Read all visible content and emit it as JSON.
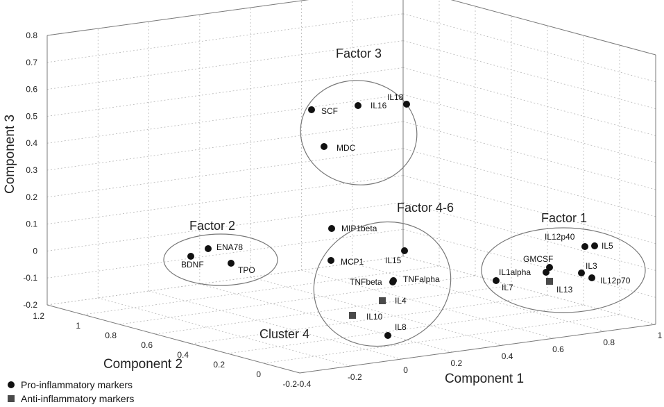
{
  "chart_data": {
    "type": "scatter",
    "projection": "3d",
    "xlabel": "Component 1",
    "ylabel": "Component 2",
    "zlabel": "Component 3",
    "xlim": [
      -0.4,
      1
    ],
    "ylim": [
      -0.2,
      1.2
    ],
    "zlim": [
      -0.2,
      0.8
    ],
    "x_ticks": [
      "-0.4",
      "-0.2",
      "0",
      "0.2",
      "0.4",
      "0.6",
      "0.8",
      "1"
    ],
    "y_ticks": [
      "-0.2",
      "0",
      "0.2",
      "0.4",
      "0.6",
      "0.8",
      "1",
      "1.2"
    ],
    "z_ticks": [
      "-0.2",
      "-0.1",
      "0",
      "0.1",
      "0.2",
      "0.3",
      "0.4",
      "0.5",
      "0.6",
      "0.7",
      "0.8"
    ],
    "grid": true,
    "legend_position": "bottom-left",
    "series": [
      {
        "name": "Pro-inflammatory markers",
        "marker": "circle",
        "color": "#111111",
        "points": [
          {
            "label": "SCF",
            "x": 0.0,
            "y": 0.9,
            "z": 0.53
          },
          {
            "label": "IL16",
            "x": 0.25,
            "y": 1.0,
            "z": 0.54
          },
          {
            "label": "IL18",
            "x": 0.4,
            "y": 1.05,
            "z": 0.55
          },
          {
            "label": "MDC",
            "x": 0.0,
            "y": 0.85,
            "z": 0.39
          },
          {
            "label": "ENA78",
            "x": -0.3,
            "y": 1.0,
            "z": 0.01
          },
          {
            "label": "BDNF",
            "x": -0.35,
            "y": 0.9,
            "z": -0.02
          },
          {
            "label": "TPO",
            "x": -0.22,
            "y": 0.85,
            "z": -0.04
          },
          {
            "label": "MIP1beta",
            "x": 0.08,
            "y": 0.4,
            "z": 0.08
          },
          {
            "label": "MCP1",
            "x": 0.04,
            "y": 0.35,
            "z": -0.02
          },
          {
            "label": "IL15",
            "x": 0.35,
            "y": 0.45,
            "z": 0.0
          },
          {
            "label": "TNFbeta",
            "x": 0.25,
            "y": 0.35,
            "z": -0.1
          },
          {
            "label": "TNFalpha",
            "x": 0.26,
            "y": 0.35,
            "z": -0.11
          },
          {
            "label": "IL8",
            "x": 0.2,
            "y": 0.2,
            "z": -0.3
          },
          {
            "label": "IL12p40",
            "x": 0.85,
            "y": 0.6,
            "z": 0.01
          },
          {
            "label": "IL5",
            "x": 0.9,
            "y": 0.55,
            "z": 0.02
          },
          {
            "label": "GMCSF",
            "x": 0.7,
            "y": 0.5,
            "z": -0.05
          },
          {
            "label": "IL1alpha",
            "x": 0.7,
            "y": 0.5,
            "z": -0.08
          },
          {
            "label": "IL3",
            "x": 0.88,
            "y": 0.5,
            "z": -0.08
          },
          {
            "label": "IL12p70",
            "x": 0.92,
            "y": 0.48,
            "z": -0.1
          },
          {
            "label": "IL7",
            "x": 0.55,
            "y": 0.5,
            "z": -0.11
          }
        ]
      },
      {
        "name": "Anti-inflammatory markers",
        "marker": "square",
        "color": "#4a4a4a",
        "points": [
          {
            "label": "IL4",
            "x": 0.22,
            "y": 0.3,
            "z": -0.18
          },
          {
            "label": "IL10",
            "x": 0.1,
            "y": 0.3,
            "z": -0.2
          },
          {
            "label": "IL13",
            "x": 0.72,
            "y": 0.45,
            "z": -0.12
          }
        ]
      }
    ],
    "annotations": [
      "Factor 3",
      "Factor 2",
      "Factor 4-6",
      "Factor 1",
      "Cluster 4"
    ]
  }
}
